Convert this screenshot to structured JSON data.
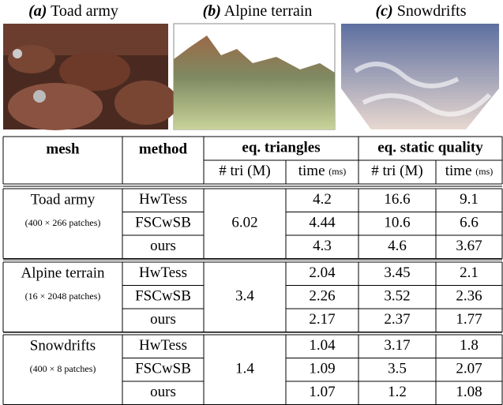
{
  "figures": [
    {
      "tag": "(a)",
      "label": "Toad army"
    },
    {
      "tag": "(b)",
      "label": "Alpine terrain"
    },
    {
      "tag": "(c)",
      "label": "Snowdrifts"
    }
  ],
  "table": {
    "headers": {
      "mesh": "mesh",
      "method": "method",
      "eq_triangles": "eq. triangles",
      "eq_static_quality": "eq. static quality"
    },
    "subheaders": [
      {
        "label": "# tri (M)"
      },
      {
        "label": "time",
        "unit": "(ms)"
      },
      {
        "label": "# tri (M)"
      },
      {
        "label": "time",
        "unit": "(ms)"
      }
    ],
    "groups": [
      {
        "mesh": "Toad army",
        "patches": "(400 × 266 patches)",
        "eq_tri": 6.02,
        "rows": [
          {
            "method": "HwTess",
            "time": 4.2,
            "static_tri": 16.6,
            "static_time": 9.1
          },
          {
            "method": "FSCwSB",
            "time": 4.44,
            "static_tri": 10.6,
            "static_time": 6.6
          },
          {
            "method": "ours",
            "time": 4.3,
            "static_tri": 4.6,
            "static_time": 3.67
          }
        ]
      },
      {
        "mesh": "Alpine terrain",
        "patches": "(16 × 2048 patches)",
        "eq_tri": 3.4,
        "rows": [
          {
            "method": "HwTess",
            "time": 2.04,
            "static_tri": 3.45,
            "static_time": 2.1
          },
          {
            "method": "FSCwSB",
            "time": 2.26,
            "static_tri": 3.52,
            "static_time": 2.36
          },
          {
            "method": "ours",
            "time": 2.17,
            "static_tri": 2.37,
            "static_time": 1.77
          }
        ]
      },
      {
        "mesh": "Snowdrifts",
        "patches": "(400 × 8 patches)",
        "eq_tri": 1.4,
        "rows": [
          {
            "method": "HwTess",
            "time": 1.04,
            "static_tri": 3.17,
            "static_time": 1.8
          },
          {
            "method": "FSCwSB",
            "time": 1.09,
            "static_tri": 3.5,
            "static_time": 2.07
          },
          {
            "method": "ours",
            "time": 1.07,
            "static_tri": 1.2,
            "static_time": 1.08
          }
        ]
      }
    ]
  }
}
